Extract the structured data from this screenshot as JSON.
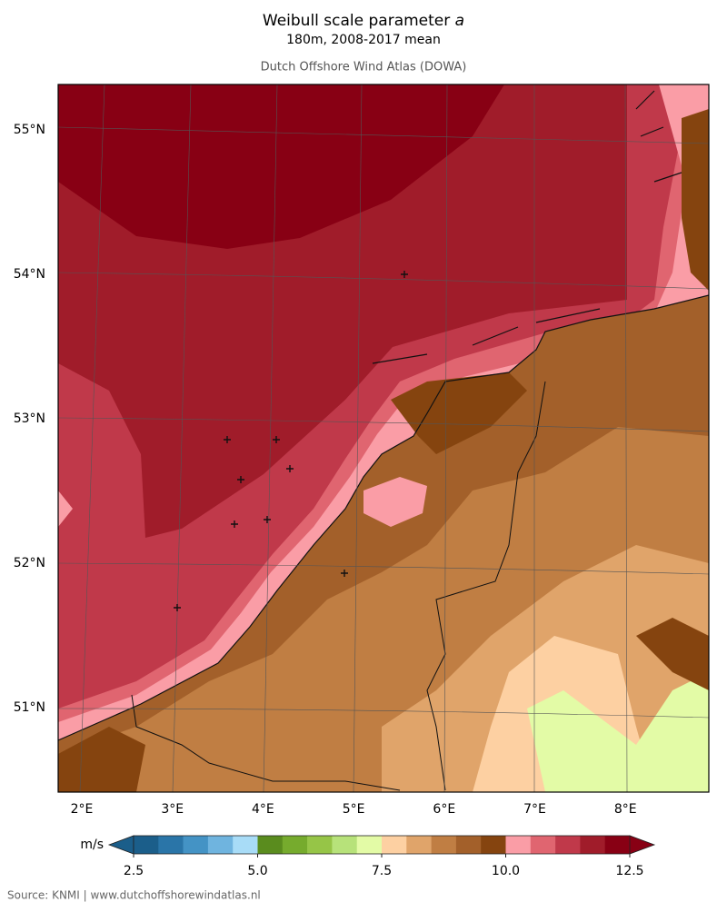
{
  "header": {
    "title": "Weibull scale parameter",
    "title_variable": "a",
    "subtitle": "180m, 2008-2017 mean",
    "source_line": "Dutch Offshore Wind Atlas (DOWA)"
  },
  "map": {
    "lat_labels": [
      "55°N",
      "54°N",
      "53°N",
      "52°N",
      "51°N"
    ],
    "lon_labels": [
      "2°E",
      "3°E",
      "4°E",
      "5°E",
      "6°E",
      "7°E",
      "8°E"
    ]
  },
  "colorbar": {
    "unit": "m/s",
    "lim": [
      2.5,
      12.5
    ],
    "ticks": [
      2.5,
      {
        "value": 5,
        "label": "5.0"
      },
      7.5,
      {
        "value": 10,
        "label": "10.0"
      },
      12.5
    ],
    "levels": [
      2.5,
      3,
      3.5,
      4,
      4.5,
      5,
      5.5,
      6,
      6.5,
      7,
      7.5,
      8,
      8.5,
      9,
      9.5,
      10,
      10.5,
      11,
      11.5,
      12,
      12.5
    ],
    "colors": [
      "#1b5e8a",
      "#2a75a8",
      "#4493c5",
      "#6fb4df",
      "#a8dcf7",
      "#5a8c1e",
      "#76ab2d",
      "#96c547",
      "#b7e27a",
      "#e3fba6",
      "#fdd0a2",
      "#e0a46a",
      "#c07e43",
      "#a3602a",
      "#85440f",
      "#fa9da6",
      "#e06570",
      "#c0394a",
      "#a01c2a",
      "#880014"
    ]
  },
  "footer": {
    "source": "Source: KNMI | www.dutchoffshorewindatlas.nl"
  }
}
